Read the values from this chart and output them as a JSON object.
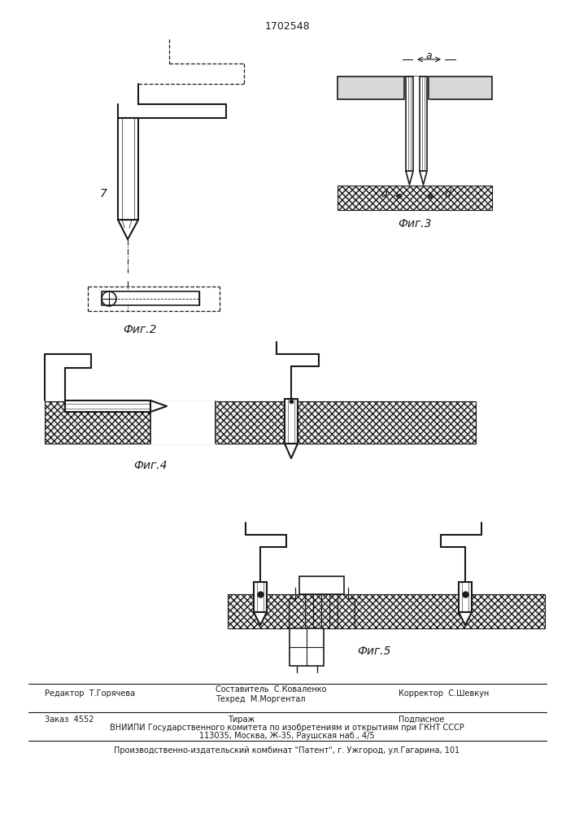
{
  "patent_number": "1702548",
  "background_color": "#ffffff",
  "line_color": "#1a1a1a",
  "fig2_label": "Фиг.2",
  "fig3_label": "Фиг.3",
  "fig4_label": "Фиг.4",
  "fig5_label": "Фиг.5",
  "label_7": "7",
  "label_a": "a",
  "label_d1": "d",
  "label_d2": "d",
  "footer_line1_left": "Редактор  Т.Горячева",
  "footer_line1_mid1": "Составитель  С.Коваленко",
  "footer_line1_mid2": "Техред  М.Моргентал",
  "footer_line1_right": "Корректор  С.Шевкун",
  "footer_line2_left": "Заказ  4552",
  "footer_line2_mid": "Тираж",
  "footer_line2_right": "Подписное",
  "footer_line3": "ВНИИПИ Государственного комитета по изобретениям и открытиям при ГКНТ СССР",
  "footer_line4": "113035, Москва, Ж-35, Раушская наб., 4/5",
  "footer_line5": "Производственно-издательский комбинат \"Патент\", г. Ужгород, ул.Гагарина, 101"
}
